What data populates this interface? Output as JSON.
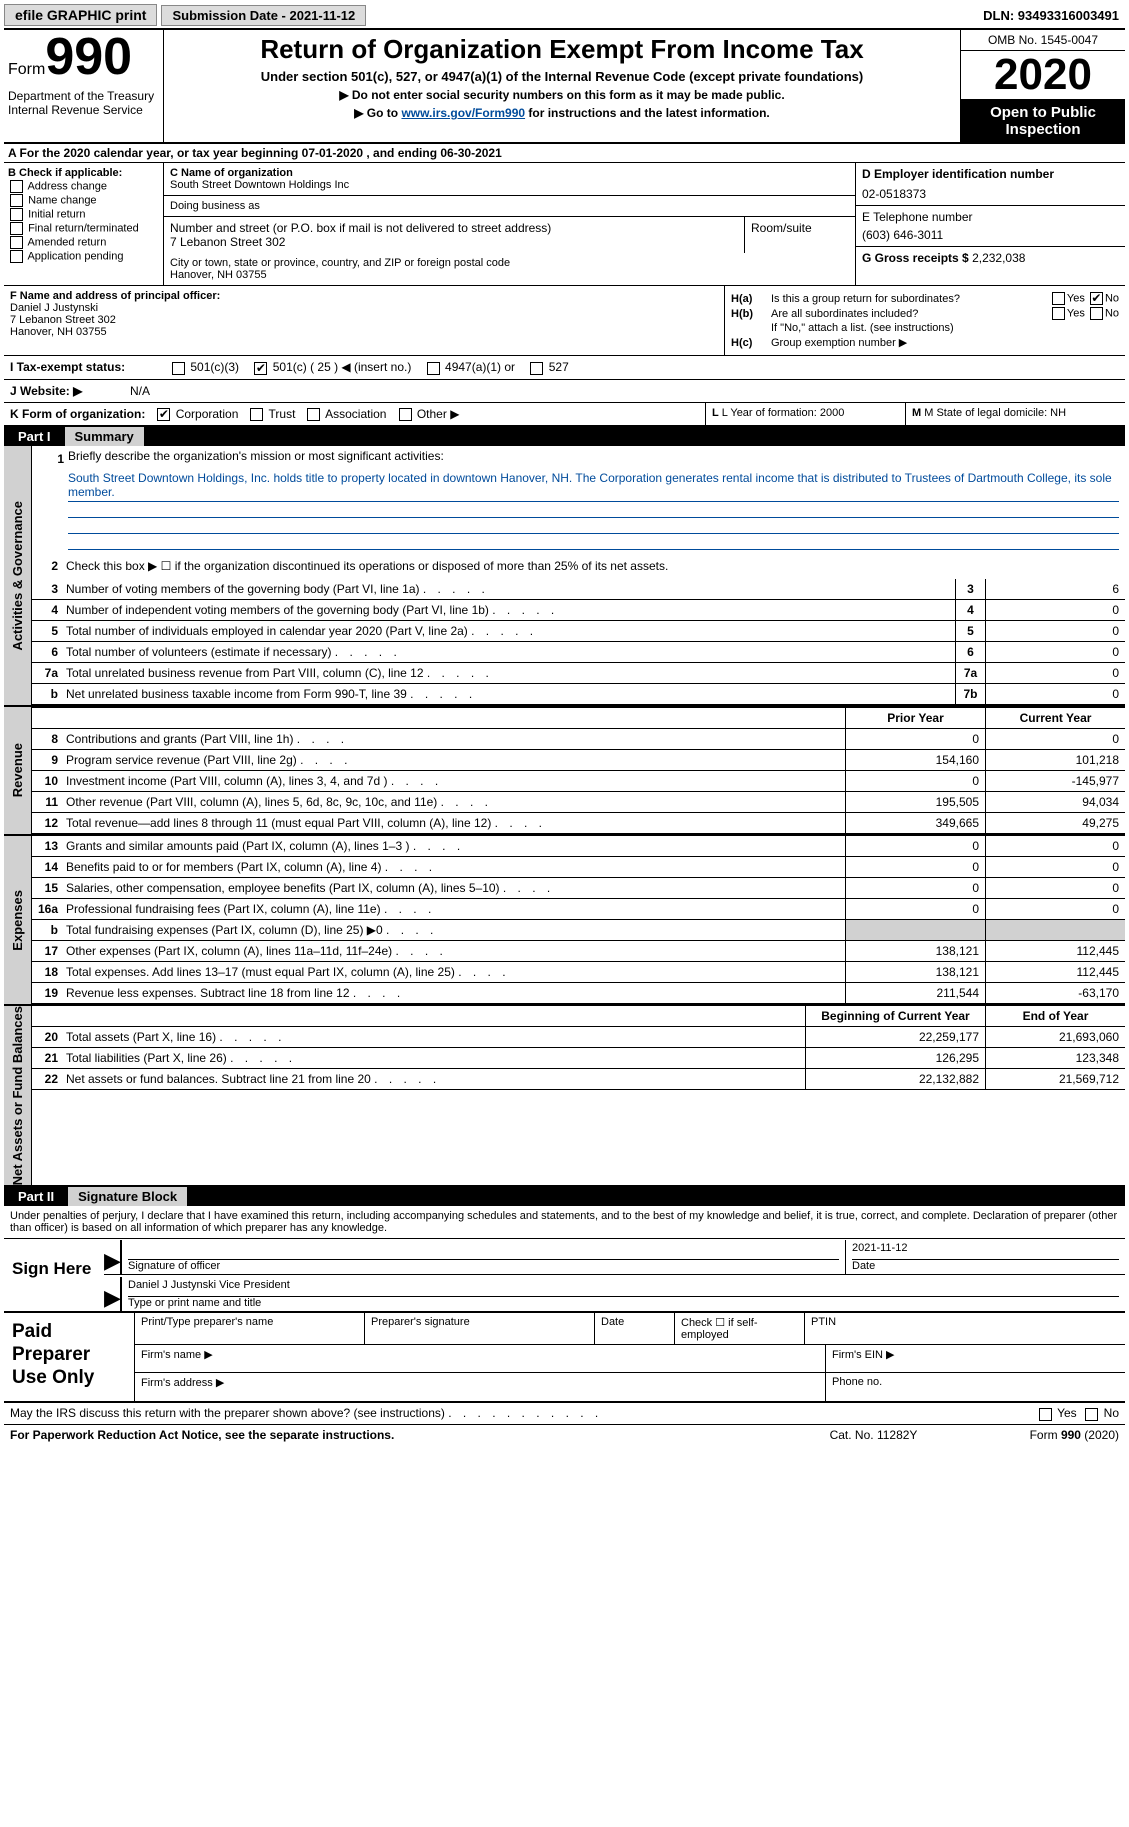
{
  "topbar": {
    "efile": "efile GRAPHIC print",
    "submission": "Submission Date - 2021-11-12",
    "dln": "DLN: 93493316003491"
  },
  "header": {
    "form_prefix": "Form",
    "form_num": "990",
    "dept": "Department of the Treasury Internal Revenue Service",
    "title": "Return of Organization Exempt From Income Tax",
    "sub1": "Under section 501(c), 527, or 4947(a)(1) of the Internal Revenue Code (except private foundations)",
    "sub2": "▶ Do not enter social security numbers on this form as it may be made public.",
    "sub3": "▶ Go to www.irs.gov/Form990 for instructions and the latest information.",
    "link": "www.irs.gov/Form990",
    "omb": "OMB No. 1545-0047",
    "year": "2020",
    "oti": "Open to Public Inspection"
  },
  "row_a": "A For the 2020 calendar year, or tax year beginning 07-01-2020    , and ending 06-30-2021",
  "section_b": {
    "label": "B Check if applicable:",
    "items": [
      "Address change",
      "Name change",
      "Initial return",
      "Final return/terminated",
      "Amended return",
      "Application pending"
    ]
  },
  "section_c": {
    "name_lbl": "C Name of organization",
    "name": "South Street Downtown Holdings Inc",
    "dba_lbl": "Doing business as",
    "dba": "",
    "addr_lbl": "Number and street (or P.O. box if mail is not delivered to street address)",
    "addr": "7 Lebanon Street 302",
    "room_lbl": "Room/suite",
    "city_lbl": "City or town, state or province, country, and ZIP or foreign postal code",
    "city": "Hanover, NH  03755"
  },
  "section_d": {
    "ein_lbl": "D Employer identification number",
    "ein": "02-0518373",
    "tel_lbl": "E Telephone number",
    "tel": "(603) 646-3011",
    "gross_lbl": "G Gross receipts $",
    "gross": "2,232,038"
  },
  "section_f": {
    "lbl": "F Name and address of principal officer:",
    "name": "Daniel J Justynski",
    "addr1": "7 Lebanon Street 302",
    "addr2": "Hanover, NH  03755"
  },
  "section_h": {
    "ha_lbl": "H(a)",
    "ha_txt": "Is this a group return for subordinates?",
    "hb_lbl": "H(b)",
    "hb_txt": "Are all subordinates included?",
    "hb_note": "If \"No,\" attach a list. (see instructions)",
    "hc_lbl": "H(c)",
    "hc_txt": "Group exemption number ▶",
    "yes": "Yes",
    "no": "No"
  },
  "row_i": {
    "lbl": "I   Tax-exempt status:",
    "opts": [
      "501(c)(3)",
      "501(c) ( 25 ) ◀ (insert no.)",
      "4947(a)(1) or",
      "527"
    ]
  },
  "row_j": {
    "lbl": "J   Website: ▶",
    "val": "N/A"
  },
  "row_k": {
    "lbl": "K Form of organization:",
    "opts": [
      "Corporation",
      "Trust",
      "Association",
      "Other ▶"
    ],
    "l": "L Year of formation: 2000",
    "m": "M State of legal domicile: NH"
  },
  "part1": {
    "num": "Part I",
    "title": "Summary"
  },
  "mission": {
    "num": "1",
    "lbl": "Briefly describe the organization's mission or most significant activities:",
    "text": "South Street Downtown Holdings, Inc. holds title to property located in downtown Hanover, NH. The Corporation generates rental income that is distributed to Trustees of Dartmouth College, its sole member."
  },
  "line2": {
    "num": "2",
    "txt": "Check this box ▶ ☐  if the organization discontinued its operations or disposed of more than 25% of its net assets."
  },
  "sidetabs": {
    "gov": "Activities & Governance",
    "rev": "Revenue",
    "exp": "Expenses",
    "net": "Net Assets or Fund Balances"
  },
  "col_hdrs": {
    "prior": "Prior Year",
    "current": "Current Year",
    "begin": "Beginning of Current Year",
    "end": "End of Year"
  },
  "gov_lines": [
    {
      "n": "3",
      "t": "Number of voting members of the governing body (Part VI, line 1a)",
      "box": "3",
      "v": "6"
    },
    {
      "n": "4",
      "t": "Number of independent voting members of the governing body (Part VI, line 1b)",
      "box": "4",
      "v": "0"
    },
    {
      "n": "5",
      "t": "Total number of individuals employed in calendar year 2020 (Part V, line 2a)",
      "box": "5",
      "v": "0"
    },
    {
      "n": "6",
      "t": "Total number of volunteers (estimate if necessary)",
      "box": "6",
      "v": "0"
    },
    {
      "n": "7a",
      "t": "Total unrelated business revenue from Part VIII, column (C), line 12",
      "box": "7a",
      "v": "0"
    },
    {
      "n": "b",
      "t": "Net unrelated business taxable income from Form 990-T, line 39",
      "box": "7b",
      "v": "0"
    }
  ],
  "rev_lines": [
    {
      "n": "8",
      "t": "Contributions and grants (Part VIII, line 1h)",
      "py": "0",
      "cy": "0"
    },
    {
      "n": "9",
      "t": "Program service revenue (Part VIII, line 2g)",
      "py": "154,160",
      "cy": "101,218"
    },
    {
      "n": "10",
      "t": "Investment income (Part VIII, column (A), lines 3, 4, and 7d )",
      "py": "0",
      "cy": "-145,977"
    },
    {
      "n": "11",
      "t": "Other revenue (Part VIII, column (A), lines 5, 6d, 8c, 9c, 10c, and 11e)",
      "py": "195,505",
      "cy": "94,034"
    },
    {
      "n": "12",
      "t": "Total revenue—add lines 8 through 11 (must equal Part VIII, column (A), line 12)",
      "py": "349,665",
      "cy": "49,275"
    }
  ],
  "exp_lines": [
    {
      "n": "13",
      "t": "Grants and similar amounts paid (Part IX, column (A), lines 1–3 )",
      "py": "0",
      "cy": "0"
    },
    {
      "n": "14",
      "t": "Benefits paid to or for members (Part IX, column (A), line 4)",
      "py": "0",
      "cy": "0"
    },
    {
      "n": "15",
      "t": "Salaries, other compensation, employee benefits (Part IX, column (A), lines 5–10)",
      "py": "0",
      "cy": "0"
    },
    {
      "n": "16a",
      "t": "Professional fundraising fees (Part IX, column (A), line 11e)",
      "py": "0",
      "cy": "0"
    },
    {
      "n": "b",
      "t": "Total fundraising expenses (Part IX, column (D), line 25) ▶0",
      "py": "",
      "cy": "",
      "shade": true
    },
    {
      "n": "17",
      "t": "Other expenses (Part IX, column (A), lines 11a–11d, 11f–24e)",
      "py": "138,121",
      "cy": "112,445"
    },
    {
      "n": "18",
      "t": "Total expenses. Add lines 13–17 (must equal Part IX, column (A), line 25)",
      "py": "138,121",
      "cy": "112,445"
    },
    {
      "n": "19",
      "t": "Revenue less expenses. Subtract line 18 from line 12",
      "py": "211,544",
      "cy": "-63,170"
    }
  ],
  "net_lines": [
    {
      "n": "20",
      "t": "Total assets (Part X, line 16)",
      "py": "22,259,177",
      "cy": "21,693,060"
    },
    {
      "n": "21",
      "t": "Total liabilities (Part X, line 26)",
      "py": "126,295",
      "cy": "123,348"
    },
    {
      "n": "22",
      "t": "Net assets or fund balances. Subtract line 21 from line 20",
      "py": "22,132,882",
      "cy": "21,569,712"
    }
  ],
  "part2": {
    "num": "Part II",
    "title": "Signature Block"
  },
  "sig": {
    "intro": "Under penalties of perjury, I declare that I have examined this return, including accompanying schedules and statements, and to the best of my knowledge and belief, it is true, correct, and complete. Declaration of preparer (other than officer) is based on all information of which preparer has any knowledge.",
    "here": "Sign Here",
    "sig_lbl": "Signature of officer",
    "date_lbl": "Date",
    "date": "2021-11-12",
    "name": "Daniel J Justynski  Vice President",
    "name_lbl": "Type or print name and title"
  },
  "prep": {
    "title": "Paid Preparer Use Only",
    "r1": {
      "c1": "Print/Type preparer's name",
      "c2": "Preparer's signature",
      "c3": "Date",
      "c4": "Check ☐ if self-employed",
      "c5": "PTIN"
    },
    "r2": {
      "c1": "Firm's name  ▶",
      "c2": "Firm's EIN ▶"
    },
    "r3": {
      "c1": "Firm's address ▶",
      "c2": "Phone no."
    }
  },
  "footer": {
    "irs": "May the IRS discuss this return with the preparer shown above? (see instructions)",
    "yes": "Yes",
    "no": "No",
    "paperwork": "For Paperwork Reduction Act Notice, see the separate instructions.",
    "cat": "Cat. No. 11282Y",
    "form": "Form 990 (2020)"
  }
}
